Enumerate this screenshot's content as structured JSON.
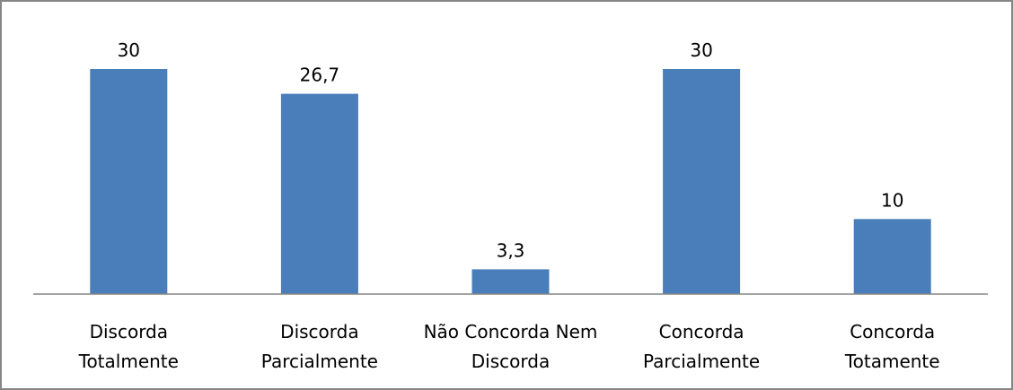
{
  "chart_data": {
    "type": "bar",
    "categories": [
      [
        "Discorda",
        "Totalmente"
      ],
      [
        "Discorda",
        "Parcialmente"
      ],
      [
        "Não Concorda Nem",
        "Discorda"
      ],
      [
        "Concorda",
        "Parcialmente"
      ],
      [
        "Concorda",
        "Totamente"
      ]
    ],
    "values": [
      30,
      26.7,
      3.3,
      30,
      10
    ],
    "data_labels": [
      "30",
      "26,7",
      "3,3",
      "30",
      "10"
    ],
    "title": "",
    "xlabel": "",
    "ylabel": "",
    "ylim": [
      0,
      30
    ],
    "grid": false,
    "legend": "none",
    "bar_color": "#4a7ebb",
    "axis_color": "#868686",
    "frame_color": "#868686"
  }
}
